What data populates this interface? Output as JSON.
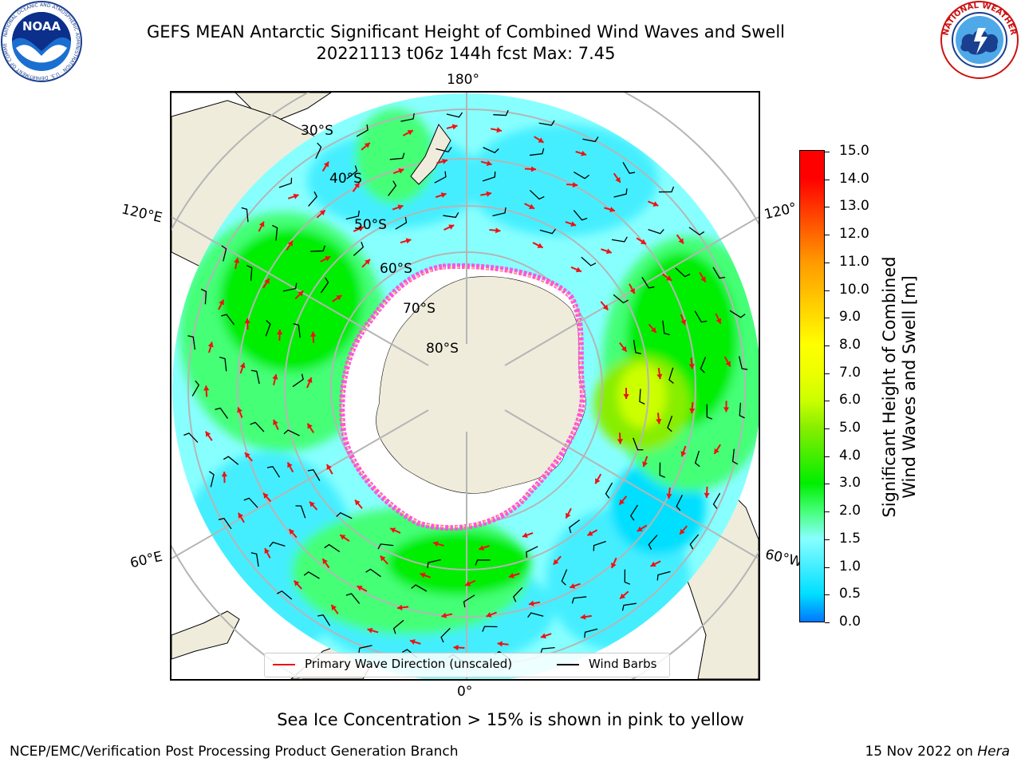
{
  "title": {
    "line1": "GEFS MEAN Antarctic Significant Height of Combined Wind Waves and Swell",
    "line2": "20221113 t06z 144h fcst   Max: 7.45"
  },
  "logos": {
    "left": {
      "text": "NOAA",
      "ring_text": "NATIONAL OCEANIC AND ATMOSPHERIC ADMINISTRATION · U.S. DEPARTMENT OF COMMERCE"
    },
    "right": {
      "ring_text": "NATIONAL WEATHER SERVICE"
    }
  },
  "map": {
    "projection": "south polar stereographic",
    "longitude_labels": {
      "top": "180°",
      "bottom": "0°",
      "upper_left": "120°E",
      "upper_right": "120°",
      "lower_left": "60°E",
      "lower_right": "60°W"
    },
    "latitude_labels": [
      "30°S",
      "40°S",
      "50°S",
      "60°S",
      "70°S",
      "80°S"
    ],
    "colors": {
      "land": "#efecdc",
      "ocean_outside": "#ffffff",
      "ice_edge_pink": "#ff55dd",
      "ice_edge_yellow": "#ffcc66",
      "arrow": "#ee1111",
      "barb": "#000000",
      "grid": "#b5b5b5"
    }
  },
  "colorbar": {
    "label_line1": "Significant Height of Combined",
    "label_line2": "Wind Waves and Swell [m]",
    "ticks": [
      "0.0",
      "0.5",
      "1.0",
      "1.5",
      "2.0",
      "3.0",
      "4.0",
      "5.0",
      "6.0",
      "7.0",
      "8.0",
      "9.0",
      "10.0",
      "11.0",
      "12.0",
      "13.0",
      "14.0",
      "15.0"
    ],
    "colors": [
      "#0000ff",
      "#0077ff",
      "#00dfff",
      "#44eeff",
      "#88ffff",
      "#44ff77",
      "#00ee00",
      "#44ee00",
      "#88ee00",
      "#ccff00",
      "#eeff00",
      "#ffff00",
      "#ffdd00",
      "#ffbb00",
      "#ff9900",
      "#ff6600",
      "#ff3300",
      "#ff0000"
    ]
  },
  "legend": {
    "item1": "Primary Wave Direction (unscaled)",
    "item2": "Wind Barbs",
    "item1_color": "#ee1111",
    "item2_color": "#000000"
  },
  "footer": {
    "note": "Sea Ice Concentration > 15% is shown in pink to yellow",
    "credit": "NCEP/EMC/Verification Post Processing Product Generation Branch",
    "date_prefix": "15 Nov 2022 on ",
    "date_host": "Hera"
  }
}
